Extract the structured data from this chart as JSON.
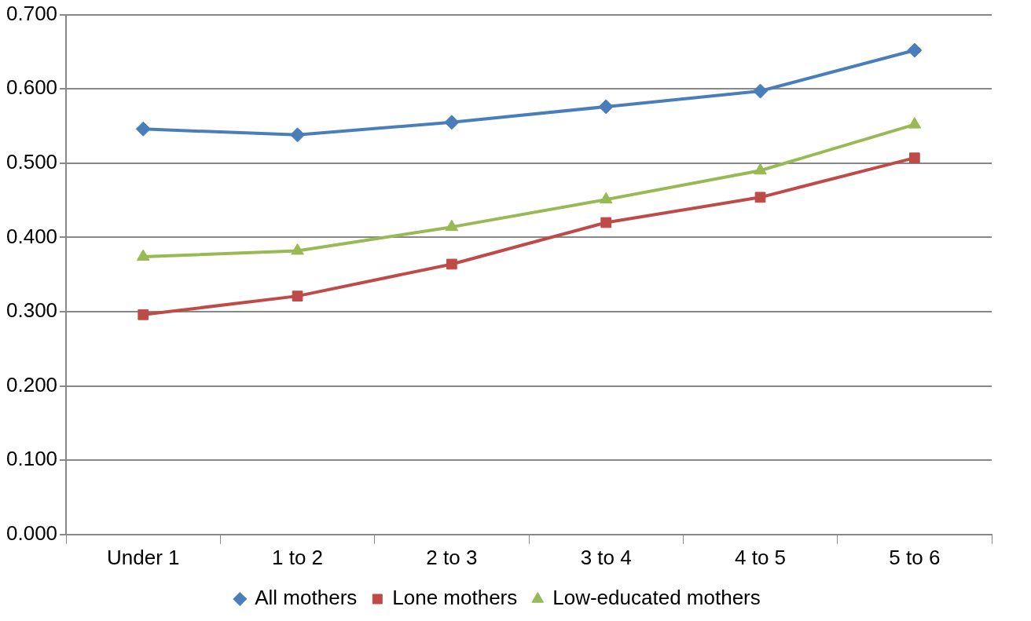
{
  "chart_data": {
    "type": "line",
    "categories": [
      "Under 1",
      "1 to 2",
      "2 to 3",
      "3 to 4",
      "4 to 5",
      "5 to 6"
    ],
    "series": [
      {
        "name": "All mothers",
        "color": "#4a7ebb",
        "marker": "diamond",
        "values": [
          0.546,
          0.538,
          0.555,
          0.576,
          0.597,
          0.652
        ]
      },
      {
        "name": "Lone mothers",
        "color": "#be4b48",
        "marker": "square",
        "values": [
          0.296,
          0.321,
          0.364,
          0.42,
          0.454,
          0.507
        ]
      },
      {
        "name": "Low-educated mothers",
        "color": "#98b954",
        "marker": "triangle",
        "values": [
          0.374,
          0.382,
          0.414,
          0.451,
          0.49,
          0.552
        ]
      }
    ],
    "ylim": [
      0,
      0.7
    ],
    "yticks": [
      {
        "value": 0,
        "label": "0.000"
      },
      {
        "value": 0.1,
        "label": "0.100"
      },
      {
        "value": 0.2,
        "label": "0.200"
      },
      {
        "value": 0.3,
        "label": "0.300"
      },
      {
        "value": 0.4,
        "label": "0.400"
      },
      {
        "value": 0.5,
        "label": "0.500"
      },
      {
        "value": 0.6,
        "label": "0.600"
      },
      {
        "value": 0.7,
        "label": "0.700"
      }
    ],
    "grid": "y",
    "legend": "bottom",
    "line_style": "solid"
  }
}
